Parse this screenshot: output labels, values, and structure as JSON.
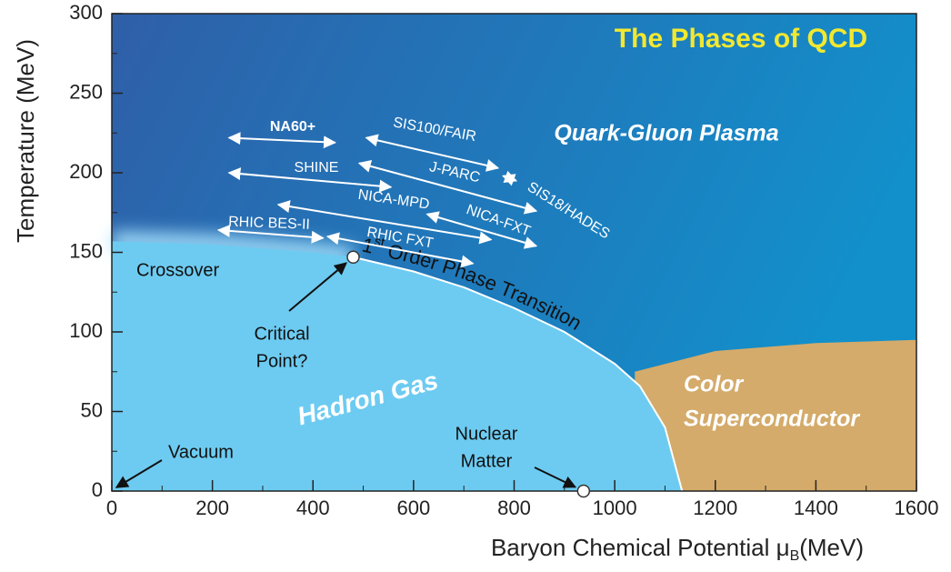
{
  "chart_data": {
    "type": "phase",
    "title": "The Phases of QCD",
    "x_label": [
      "Baryon Chemical Potential μ",
      "B",
      "(MeV)"
    ],
    "y_label": "Temperature (MeV)",
    "xlim": [
      0,
      1600
    ],
    "ylim": [
      0,
      300
    ],
    "xticks": [
      0,
      200,
      400,
      600,
      800,
      1000,
      1200,
      1400,
      1600
    ],
    "yticks": [
      0,
      50,
      100,
      150,
      200,
      250,
      300
    ],
    "colors": {
      "plasma": "#2a66ad",
      "hadron": "#6dcbf1",
      "superconductor": "#d4ab6a",
      "title": "#f2e830"
    },
    "regions": {
      "plasma": "Quark-Gluon Plasma",
      "hadron": "Hadron Gas",
      "superconductor": [
        "Color",
        "Superconductor"
      ]
    },
    "hadron_boundary": {
      "x": [
        0,
        200,
        400,
        480,
        600,
        700,
        800,
        900,
        1000,
        1050,
        1100,
        1134
      ],
      "y": [
        157,
        155,
        150,
        147,
        138,
        128,
        115,
        100,
        80,
        66,
        40,
        0
      ]
    },
    "superconductor_boundary": {
      "x": [
        1040,
        1200,
        1400,
        1600
      ],
      "y": [
        75,
        88,
        93,
        95
      ]
    },
    "crossover": "Crossover",
    "transition": [
      "1",
      "st",
      "Order Phase Transition"
    ],
    "points": [
      {
        "label": [
          "Critical",
          "Point?"
        ],
        "x": 480,
        "y": 147
      },
      {
        "label": [
          "Nuclear",
          "Matter"
        ],
        "x": 938,
        "y": 0
      }
    ],
    "vacuum": "Vacuum",
    "experiments": [
      {
        "name": "NA60+",
        "x": [
          233,
          444
        ],
        "y": [
          222,
          219
        ]
      },
      {
        "name": "SIS100/FAIR",
        "x": [
          506,
          768
        ],
        "y": [
          222,
          203
        ]
      },
      {
        "name": "SHINE",
        "x": [
          233,
          555
        ],
        "y": [
          200,
          191
        ]
      },
      {
        "name": "J-PARC",
        "x": [
          492,
          844
        ],
        "y": [
          206,
          176
        ]
      },
      {
        "name": "SIS18/HADES",
        "x": [
          778,
          804
        ],
        "y": [
          198,
          195
        ]
      },
      {
        "name": "NICA-MPD",
        "x": [
          331,
          754
        ],
        "y": [
          180,
          158
        ]
      },
      {
        "name": "NICA-FXT",
        "x": [
          627,
          844
        ],
        "y": [
          174,
          154
        ]
      },
      {
        "name": "RHIC BES-II",
        "x": [
          212,
          420
        ],
        "y": [
          164,
          159
        ]
      },
      {
        "name": "RHIC FXT",
        "x": [
          429,
          718
        ],
        "y": [
          160,
          143
        ]
      }
    ]
  }
}
